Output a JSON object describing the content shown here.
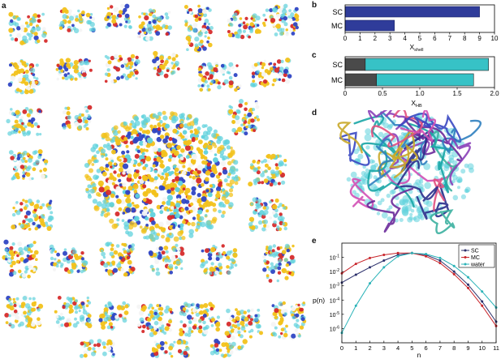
{
  "panels": {
    "a": "a",
    "b": "b",
    "c": "c",
    "d": "d",
    "e": "e"
  },
  "colors": {
    "blue_bar": "#2f3c9a",
    "teal_bar": "#37c2c6",
    "dark_bar": "#4a4a4a",
    "sc_line": "#2b2f6b",
    "mc_line": "#c8242a",
    "water_line": "#2bb3b8",
    "yellow_atom": "#f2c21b",
    "cyan_water": "#5fd1dc",
    "red_atom": "#d62b2b",
    "blue_atom": "#2f46c4",
    "white_atom": "#f4f4f4"
  },
  "chart_data": [
    {
      "panel": "b",
      "type": "bar",
      "orientation": "horizontal",
      "categories": [
        "SC",
        "MC"
      ],
      "values": [
        9.0,
        3.3
      ],
      "xlabel": "X",
      "xlabel_sub": "shell",
      "xlim": [
        0,
        10
      ],
      "xticks": [
        "0",
        "1",
        "2",
        "3",
        "4",
        "5",
        "6",
        "7",
        "8",
        "9",
        "10"
      ]
    },
    {
      "panel": "c",
      "type": "bar",
      "orientation": "horizontal",
      "stacked": true,
      "categories": [
        "SC",
        "MC"
      ],
      "series": [
        {
          "values": [
            0.27,
            0.42
          ]
        },
        {
          "values": [
            1.65,
            1.3
          ]
        }
      ],
      "xlabel": "X",
      "xlabel_sub": "HB",
      "xlim": [
        0,
        2.0
      ],
      "xticks": [
        "0",
        "0.5",
        "1.0",
        "1.5",
        "2.0"
      ]
    },
    {
      "panel": "e",
      "type": "line",
      "xlabel": "n",
      "ylabel": "p(n)",
      "xlim": [
        0,
        11
      ],
      "ylim_log10": [
        -7,
        0
      ],
      "xticks": [
        "0",
        "1",
        "2",
        "3",
        "4",
        "5",
        "6",
        "7",
        "8",
        "9",
        "10",
        "11"
      ],
      "yticks": [
        {
          "base": "10",
          "exp": "-1"
        },
        {
          "base": "10",
          "exp": "-2"
        },
        {
          "base": "10",
          "exp": "-3"
        },
        {
          "base": "10",
          "exp": "-4"
        },
        {
          "base": "10",
          "exp": "-5"
        },
        {
          "base": "10",
          "exp": "-6"
        }
      ],
      "legend_position": "top-right",
      "x": [
        0,
        1,
        2,
        3,
        4,
        5,
        6,
        7,
        8,
        9,
        10,
        11
      ],
      "series": [
        {
          "name": "SC",
          "y": [
            0.0017,
            0.006,
            0.02,
            0.06,
            0.15,
            0.2,
            0.15,
            0.06,
            0.01,
            0.0012,
            8e-05,
            3e-06
          ]
        },
        {
          "name": "MC",
          "y": [
            0.0075,
            0.035,
            0.09,
            0.15,
            0.2,
            0.2,
            0.12,
            0.04,
            0.0065,
            0.0007,
            4e-05,
            1.5e-06
          ]
        },
        {
          "name": "water",
          "y": [
            5e-07,
            4e-05,
            0.0015,
            0.02,
            0.12,
            0.2,
            0.17,
            0.09,
            0.025,
            0.004,
            0.0004,
            3e-05
          ]
        }
      ]
    }
  ]
}
